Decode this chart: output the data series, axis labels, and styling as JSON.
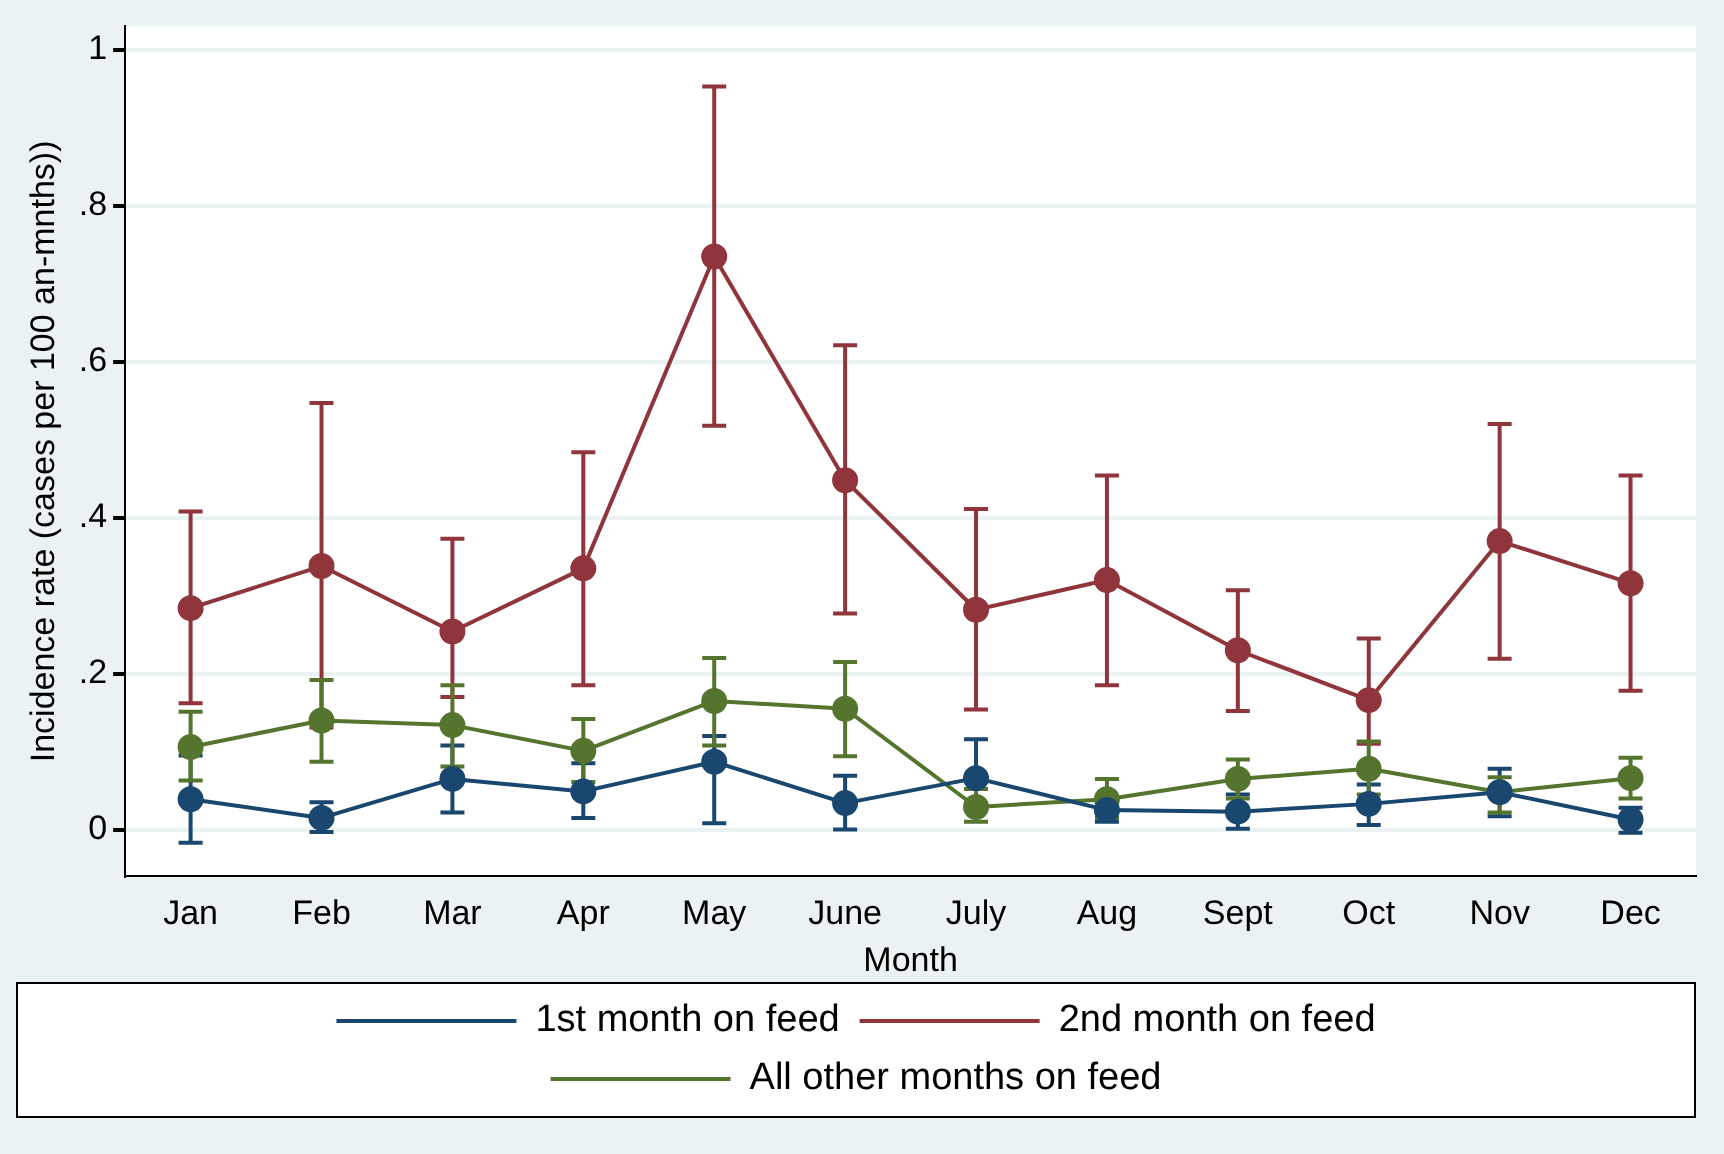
{
  "chart_data": {
    "type": "line",
    "xlabel": "Month",
    "ylabel": "Incidence rate (cases per 100 an-mnths))",
    "categories": [
      "Jan",
      "Feb",
      "Mar",
      "Apr",
      "May",
      "June",
      "July",
      "Aug",
      "Sept",
      "Oct",
      "Nov",
      "Dec"
    ],
    "ylim": [
      -0.06,
      1.03
    ],
    "yticks": [
      0,
      {
        "value": 0.2,
        "label": ".2"
      },
      {
        "value": 0.4,
        "label": ".4"
      },
      {
        "value": 0.6,
        "label": ".6"
      },
      {
        "value": 0.8,
        "label": ".8"
      },
      1
    ],
    "grid": "y",
    "legend": "bottom",
    "marker": "circle",
    "line_style": "solid",
    "series": [
      {
        "name": "1st month on feed",
        "color": "#1a476f",
        "values": [
          0.039,
          0.015,
          0.065,
          0.049,
          0.087,
          0.034,
          0.066,
          0.025,
          0.023,
          0.033,
          0.048,
          0.013
        ],
        "errors": [
          [
            -0.017,
            0.095
          ],
          [
            -0.003,
            0.035
          ],
          [
            0.022,
            0.108
          ],
          [
            0.015,
            0.085
          ],
          [
            0.008,
            0.12
          ],
          [
            0,
            0.069
          ],
          [
            0.066,
            0.116
          ],
          [
            0.01,
            0.035
          ],
          [
            0.001,
            0.045
          ],
          [
            0.006,
            0.058
          ],
          [
            0.017,
            0.078
          ],
          [
            -0.004,
            0.028
          ]
        ]
      },
      {
        "name": "2nd month on feed",
        "color": "#90353b",
        "values": [
          0.284,
          0.338,
          0.254,
          0.335,
          0.735,
          0.448,
          0.282,
          0.32,
          0.23,
          0.166,
          0.37,
          0.316
        ],
        "errors": [
          [
            0.162,
            0.408
          ],
          [
            0.131,
            0.547
          ],
          [
            0.17,
            0.373
          ],
          [
            0.185,
            0.484
          ],
          [
            0.518,
            0.953
          ],
          [
            0.277,
            0.621
          ],
          [
            0.154,
            0.411
          ],
          [
            0.185,
            0.454
          ],
          [
            0.152,
            0.307
          ],
          [
            0.11,
            0.245
          ],
          [
            0.219,
            0.52
          ],
          [
            0.178,
            0.454
          ]
        ]
      },
      {
        "name": "All other months on feed",
        "color": "#55752f",
        "values": [
          0.106,
          0.14,
          0.134,
          0.101,
          0.165,
          0.155,
          0.029,
          0.039,
          0.065,
          0.078,
          0.048,
          0.066
        ],
        "errors": [
          [
            0.063,
            0.151
          ],
          [
            0.087,
            0.192
          ],
          [
            0.081,
            0.185
          ],
          [
            0.061,
            0.142
          ],
          [
            0.108,
            0.22
          ],
          [
            0.094,
            0.215
          ],
          [
            0.01,
            0.052
          ],
          [
            0.015,
            0.065
          ],
          [
            0.04,
            0.09
          ],
          [
            0.045,
            0.113
          ],
          [
            0.022,
            0.067
          ],
          [
            0.04,
            0.092
          ]
        ]
      }
    ]
  }
}
